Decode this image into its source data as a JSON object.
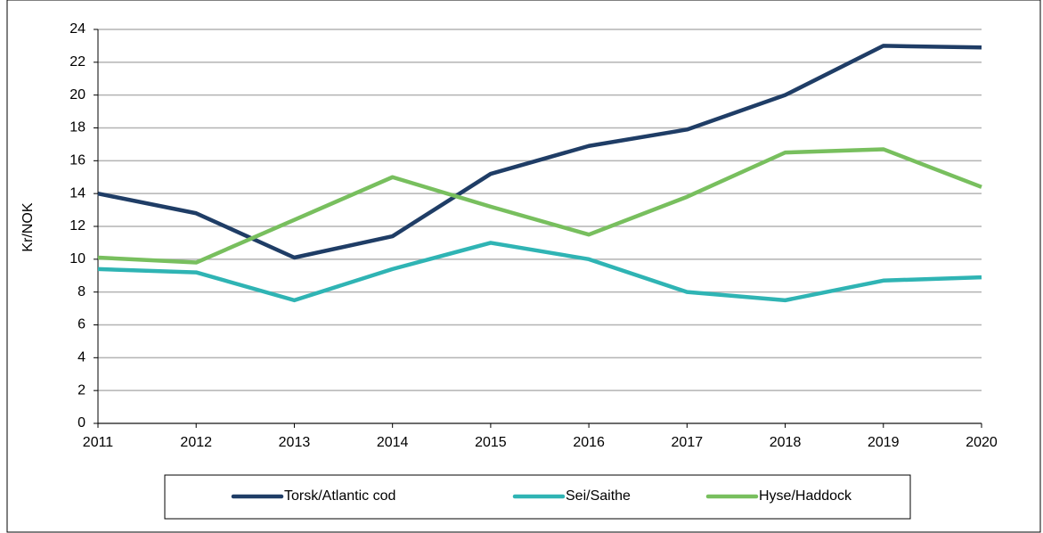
{
  "chart_data": {
    "type": "line",
    "y_label": "Kr/NOK",
    "x": [
      2011,
      2012,
      2013,
      2014,
      2015,
      2016,
      2017,
      2018,
      2019,
      2020
    ],
    "xlim": [
      2011,
      2020
    ],
    "xticks": [
      2011,
      2012,
      2013,
      2014,
      2015,
      2016,
      2017,
      2018,
      2019,
      2020
    ],
    "ylim": [
      0,
      24
    ],
    "yticks": [
      0,
      2,
      4,
      6,
      8,
      10,
      12,
      14,
      16,
      18,
      20,
      22,
      24
    ],
    "grid": true,
    "legend": "bottom",
    "series": [
      {
        "name": "Torsk/Atlantic cod",
        "color": "#1f3d66",
        "values": [
          14.0,
          12.8,
          10.1,
          11.4,
          15.2,
          16.9,
          17.9,
          20.0,
          23.0,
          22.9
        ]
      },
      {
        "name": "Sei/Saithe",
        "color": "#2fb4b4",
        "values": [
          9.4,
          9.2,
          7.5,
          9.4,
          11.0,
          10.0,
          8.0,
          7.5,
          8.7,
          8.9
        ]
      },
      {
        "name": "Hyse/Haddock",
        "color": "#78bf5e",
        "values": [
          10.1,
          9.8,
          12.4,
          15.0,
          13.2,
          11.5,
          13.8,
          16.5,
          16.7,
          14.4
        ]
      }
    ]
  }
}
